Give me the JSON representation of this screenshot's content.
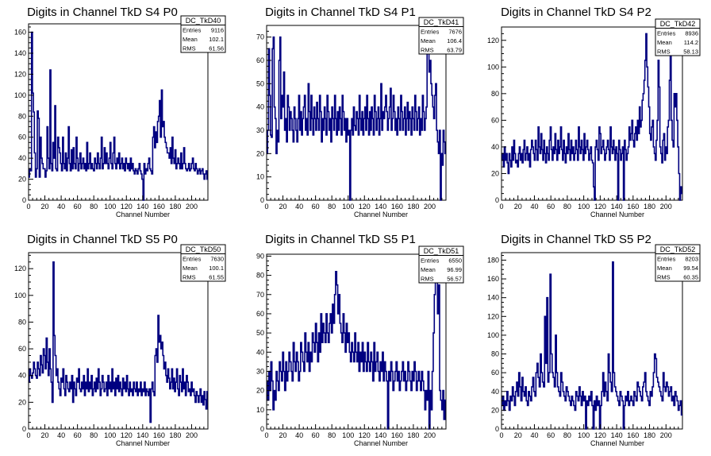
{
  "chart_data": [
    {
      "type": "histogram",
      "title": "Digits in Channel TkD S4 P0",
      "xlabel": "Channel Number",
      "ylabel": "",
      "xlim": [
        0,
        220
      ],
      "ylim": [
        0,
        168
      ],
      "xticks": [
        0,
        20,
        40,
        60,
        80,
        100,
        120,
        140,
        160,
        180,
        200
      ],
      "yticks": [
        0,
        20,
        40,
        60,
        80,
        100,
        120,
        140,
        160
      ],
      "stats": {
        "name": "DC_TkD40",
        "rows": [
          {
            "label": "Entries",
            "value": "9116"
          },
          {
            "label": "Mean",
            "value": "102.1"
          },
          {
            "label": "RMS",
            "value": "61.56"
          }
        ]
      },
      "values": [
        22,
        30,
        28,
        160,
        102,
        84,
        45,
        22,
        30,
        85,
        78,
        22,
        60,
        40,
        35,
        30,
        30,
        22,
        28,
        70,
        40,
        30,
        124,
        35,
        28,
        55,
        40,
        90,
        30,
        28,
        60,
        50,
        45,
        35,
        28,
        60,
        35,
        30,
        45,
        28,
        40,
        70,
        35,
        28,
        48,
        30,
        50,
        35,
        30,
        60,
        40,
        28,
        35,
        45,
        30,
        35,
        40,
        30,
        35,
        28,
        55,
        30,
        35,
        45,
        30,
        35,
        30,
        28,
        40,
        35,
        30,
        45,
        35,
        30,
        40,
        60,
        30,
        35,
        50,
        35,
        45,
        35,
        30,
        40,
        55,
        35,
        30,
        45,
        60,
        35,
        30,
        40,
        35,
        45,
        30,
        35,
        40,
        30,
        35,
        28,
        40,
        35,
        30,
        35,
        28,
        40,
        30,
        35,
        28,
        25,
        30,
        28,
        25,
        30,
        35,
        28,
        25,
        20,
        0,
        35,
        25,
        30,
        28,
        35,
        40,
        30,
        28,
        25,
        60,
        70,
        50,
        65,
        55,
        75,
        80,
        95,
        60,
        105,
        70,
        75,
        60,
        55,
        50,
        45,
        45,
        40,
        50,
        35,
        60,
        40,
        35,
        48,
        30,
        35,
        40,
        35,
        30,
        45,
        30,
        35,
        50,
        35,
        30,
        28,
        30,
        35,
        28,
        30,
        35,
        40,
        30,
        28,
        35,
        30,
        25,
        28,
        30,
        25,
        28,
        30,
        25,
        20,
        25,
        28,
        20
      ]
    },
    {
      "type": "histogram",
      "title": "Digits in Channel TkD S4 P1",
      "xlabel": "Channel Number",
      "ylabel": "",
      "xlim": [
        0,
        220
      ],
      "ylim": [
        0,
        75
      ],
      "xticks": [
        0,
        20,
        40,
        60,
        80,
        100,
        120,
        140,
        160,
        180,
        200
      ],
      "yticks": [
        0,
        10,
        20,
        30,
        40,
        50,
        60,
        70
      ],
      "stats": {
        "name": "DC_TkD41",
        "rows": [
          {
            "label": "Entries",
            "value": "7676"
          },
          {
            "label": "Mean",
            "value": "106.4"
          },
          {
            "label": "RMS",
            "value": "63.79"
          }
        ]
      },
      "values": [
        20,
        30,
        65,
        45,
        28,
        27,
        65,
        70,
        40,
        35,
        20,
        30,
        25,
        60,
        70,
        35,
        45,
        40,
        55,
        30,
        35,
        25,
        45,
        40,
        30,
        38,
        35,
        30,
        25,
        40,
        35,
        30,
        25,
        35,
        45,
        30,
        38,
        28,
        35,
        40,
        45,
        30,
        35,
        28,
        50,
        38,
        30,
        45,
        35,
        28,
        40,
        35,
        30,
        42,
        35,
        30,
        45,
        38,
        25,
        35,
        30,
        40,
        35,
        28,
        45,
        38,
        30,
        35,
        25,
        40,
        35,
        30,
        45,
        35,
        28,
        38,
        30,
        40,
        35,
        28,
        45,
        38,
        30,
        35,
        25,
        35,
        28,
        30,
        0,
        30,
        35,
        28,
        40,
        32,
        30,
        38,
        35,
        28,
        45,
        35,
        30,
        38,
        28,
        35,
        40,
        30,
        45,
        35,
        28,
        38,
        30,
        40,
        35,
        28,
        45,
        38,
        30,
        35,
        40,
        28,
        35,
        50,
        30,
        38,
        35,
        40,
        45,
        38,
        30,
        35,
        40,
        48,
        30,
        35,
        45,
        38,
        30,
        35,
        28,
        40,
        35,
        30,
        45,
        38,
        30,
        35,
        40,
        28,
        35,
        42,
        30,
        38,
        35,
        28,
        40,
        35,
        30,
        45,
        38,
        30,
        35,
        40,
        28,
        35,
        30,
        45,
        38,
        30,
        35,
        40,
        65,
        70,
        55,
        60,
        50,
        45,
        40,
        35,
        45,
        50,
        30,
        25,
        20,
        30,
        0,
        20,
        15,
        30,
        25,
        20
      ]
    },
    {
      "type": "histogram",
      "title": "Digits in Channel TkD S4 P2",
      "xlabel": "Channel Number",
      "ylabel": "",
      "xlim": [
        0,
        220
      ],
      "ylim": [
        0,
        130
      ],
      "xticks": [
        0,
        20,
        40,
        60,
        80,
        100,
        120,
        140,
        160,
        180,
        200
      ],
      "yticks": [
        0,
        20,
        40,
        60,
        80,
        100,
        120
      ],
      "stats": {
        "name": "DC_TkD42",
        "rows": [
          {
            "label": "Entries",
            "value": "8936"
          },
          {
            "label": "Mean",
            "value": "114.2"
          },
          {
            "label": "RMS",
            "value": "58.13"
          }
        ]
      },
      "values": [
        30,
        35,
        25,
        40,
        30,
        35,
        28,
        20,
        35,
        30,
        25,
        40,
        30,
        45,
        35,
        28,
        30,
        25,
        35,
        40,
        30,
        35,
        28,
        38,
        45,
        30,
        35,
        40,
        30,
        35,
        25,
        38,
        45,
        40,
        35,
        30,
        45,
        38,
        30,
        55,
        40,
        35,
        50,
        38,
        30,
        45,
        35,
        28,
        40,
        35,
        30,
        45,
        55,
        38,
        30,
        40,
        35,
        50,
        38,
        30,
        45,
        35,
        40,
        55,
        38,
        30,
        45,
        35,
        28,
        40,
        35,
        50,
        38,
        30,
        45,
        35,
        40,
        30,
        35,
        45,
        38,
        30,
        55,
        40,
        35,
        45,
        38,
        30,
        50,
        35,
        40,
        45,
        38,
        30,
        35,
        40,
        30,
        28,
        10,
        0,
        40,
        45,
        38,
        30,
        55,
        50,
        35,
        40,
        45,
        38,
        30,
        35,
        40,
        45,
        38,
        30,
        55,
        40,
        35,
        45,
        38,
        30,
        40,
        35,
        0,
        45,
        38,
        30,
        35,
        40,
        0,
        45,
        38,
        30,
        35,
        40,
        55,
        45,
        50,
        60,
        45,
        40,
        50,
        55,
        45,
        60,
        50,
        70,
        55,
        60,
        75,
        80,
        90,
        105,
        125,
        100,
        85,
        70,
        50,
        45,
        55,
        60,
        40,
        35,
        30,
        45,
        60,
        105,
        85,
        40,
        35,
        28,
        45,
        50,
        30,
        40,
        35,
        55,
        60,
        90,
        110,
        60,
        45,
        40,
        80,
        70,
        80,
        60,
        40,
        20,
        0,
        10,
        5
      ]
    },
    {
      "type": "histogram",
      "title": "Digits in Channel TkD S5 P0",
      "xlabel": "Channel Number",
      "ylabel": "",
      "xlim": [
        0,
        220
      ],
      "ylim": [
        0,
        132
      ],
      "xticks": [
        0,
        20,
        40,
        60,
        80,
        100,
        120,
        140,
        160,
        180,
        200
      ],
      "yticks": [
        0,
        20,
        40,
        60,
        80,
        100,
        120
      ],
      "stats": {
        "name": "DC_TkD50",
        "rows": [
          {
            "label": "Entries",
            "value": "7630"
          },
          {
            "label": "Mean",
            "value": "100.1"
          },
          {
            "label": "RMS",
            "value": "61.55"
          }
        ]
      },
      "values": [
        35,
        45,
        40,
        38,
        42,
        50,
        45,
        40,
        38,
        50,
        45,
        40,
        55,
        48,
        42,
        60,
        55,
        45,
        68,
        50,
        40,
        60,
        45,
        35,
        20,
        125,
        70,
        55,
        40,
        45,
        35,
        30,
        25,
        38,
        35,
        45,
        30,
        25,
        40,
        35,
        30,
        28,
        35,
        30,
        40,
        20,
        35,
        30,
        25,
        38,
        35,
        45,
        30,
        28,
        35,
        30,
        40,
        25,
        35,
        30,
        45,
        28,
        35,
        30,
        40,
        25,
        30,
        35,
        28,
        38,
        30,
        45,
        35,
        25,
        30,
        40,
        35,
        28,
        30,
        35,
        25,
        40,
        30,
        35,
        28,
        45,
        30,
        35,
        25,
        38,
        30,
        40,
        28,
        35,
        30,
        25,
        38,
        30,
        35,
        28,
        40,
        30,
        25,
        35,
        28,
        30,
        25,
        35,
        30,
        28,
        35,
        25,
        30,
        28,
        35,
        25,
        30,
        28,
        35,
        25,
        30,
        28,
        25,
        30,
        5,
        30,
        35,
        28,
        25,
        55,
        60,
        50,
        85,
        65,
        70,
        60,
        65,
        55,
        45,
        50,
        40,
        35,
        45,
        38,
        30,
        35,
        45,
        30,
        38,
        28,
        35,
        45,
        30,
        25,
        40,
        35,
        28,
        45,
        30,
        35,
        25,
        40,
        35,
        28,
        30,
        25,
        35,
        28,
        30,
        25,
        20,
        28,
        25,
        20,
        25,
        30,
        20,
        25,
        18,
        28,
        22,
        15,
        28
      ]
    },
    {
      "type": "histogram",
      "title": "Digits in Channel TkD S5 P1",
      "xlabel": "Channel Number",
      "ylabel": "",
      "xlim": [
        0,
        220
      ],
      "ylim": [
        0,
        91
      ],
      "xticks": [
        0,
        20,
        40,
        60,
        80,
        100,
        120,
        140,
        160,
        180,
        200
      ],
      "yticks": [
        0,
        10,
        20,
        30,
        40,
        50,
        60,
        70,
        80,
        90
      ],
      "stats": {
        "name": "DC_TkD51",
        "rows": [
          {
            "label": "Entries",
            "value": "6550"
          },
          {
            "label": "Mean",
            "value": "96.99"
          },
          {
            "label": "RMS",
            "value": "56.57"
          }
        ]
      },
      "values": [
        25,
        15,
        30,
        20,
        35,
        25,
        10,
        20,
        15,
        30,
        25,
        20,
        35,
        30,
        25,
        40,
        30,
        20,
        35,
        25,
        30,
        40,
        35,
        30,
        25,
        45,
        35,
        30,
        40,
        35,
        25,
        30,
        45,
        40,
        35,
        30,
        50,
        40,
        35,
        45,
        30,
        40,
        35,
        50,
        45,
        40,
        55,
        45,
        35,
        50,
        40,
        60,
        45,
        55,
        50,
        45,
        60,
        50,
        45,
        55,
        60,
        50,
        65,
        55,
        70,
        82,
        75,
        60,
        70,
        55,
        50,
        45,
        60,
        50,
        40,
        55,
        45,
        50,
        40,
        35,
        45,
        40,
        35,
        50,
        40,
        35,
        45,
        30,
        40,
        35,
        45,
        30,
        40,
        35,
        30,
        45,
        35,
        30,
        40,
        35,
        25,
        45,
        30,
        35,
        40,
        30,
        25,
        35,
        30,
        40,
        25,
        35,
        30,
        25,
        0,
        30,
        25,
        35,
        30,
        20,
        25,
        30,
        35,
        25,
        30,
        20,
        25,
        30,
        35,
        25,
        30,
        20,
        25,
        35,
        30,
        25,
        20,
        30,
        25,
        35,
        30,
        20,
        25,
        30,
        25,
        20,
        30,
        25,
        20,
        10,
        20,
        15,
        30,
        0,
        20,
        10,
        30,
        50,
        70,
        85,
        80,
        60,
        75,
        20,
        15,
        10,
        20,
        5,
        15
      ]
    },
    {
      "type": "histogram",
      "title": "Digits in Channel TkD S5 P2",
      "xlabel": "Channel Number",
      "ylabel": "",
      "xlim": [
        0,
        220
      ],
      "ylim": [
        0,
        188
      ],
      "xticks": [
        0,
        20,
        40,
        60,
        80,
        100,
        120,
        140,
        160,
        180,
        200
      ],
      "yticks": [
        0,
        20,
        40,
        60,
        80,
        100,
        120,
        140,
        160,
        180
      ],
      "stats": {
        "name": "DC_TkD52",
        "rows": [
          {
            "label": "Entries",
            "value": "8203"
          },
          {
            "label": "Mean",
            "value": "99.54"
          },
          {
            "label": "RMS",
            "value": "60.35"
          }
        ]
      },
      "values": [
        25,
        35,
        20,
        30,
        25,
        40,
        30,
        20,
        35,
        30,
        45,
        35,
        25,
        40,
        50,
        35,
        60,
        45,
        30,
        55,
        40,
        35,
        45,
        30,
        25,
        40,
        35,
        30,
        45,
        55,
        40,
        35,
        60,
        70,
        55,
        45,
        80,
        60,
        50,
        45,
        120,
        70,
        140,
        50,
        60,
        165,
        80,
        60,
        55,
        45,
        100,
        60,
        45,
        40,
        35,
        60,
        50,
        40,
        35,
        30,
        45,
        40,
        35,
        30,
        25,
        35,
        30,
        25,
        20,
        40,
        35,
        30,
        45,
        35,
        25,
        40,
        30,
        35,
        0,
        30,
        25,
        35,
        30,
        40,
        25,
        0,
        30,
        20,
        35,
        25,
        30,
        0,
        25,
        40,
        60,
        35,
        50,
        40,
        30,
        80,
        60,
        50,
        40,
        178,
        60,
        45,
        40,
        35,
        30,
        25,
        40,
        35,
        30,
        0,
        25,
        35,
        30,
        40,
        25,
        30,
        35,
        30,
        25,
        40,
        35,
        30,
        50,
        45,
        40,
        35,
        30,
        45,
        50,
        60,
        40,
        35,
        30,
        25,
        40,
        35,
        45,
        60,
        80,
        75,
        55,
        50,
        45,
        40,
        35,
        30,
        60,
        45,
        40,
        50,
        45,
        35,
        40,
        45,
        30,
        35,
        25,
        40,
        35,
        30,
        20,
        25,
        30,
        15
      ]
    }
  ]
}
